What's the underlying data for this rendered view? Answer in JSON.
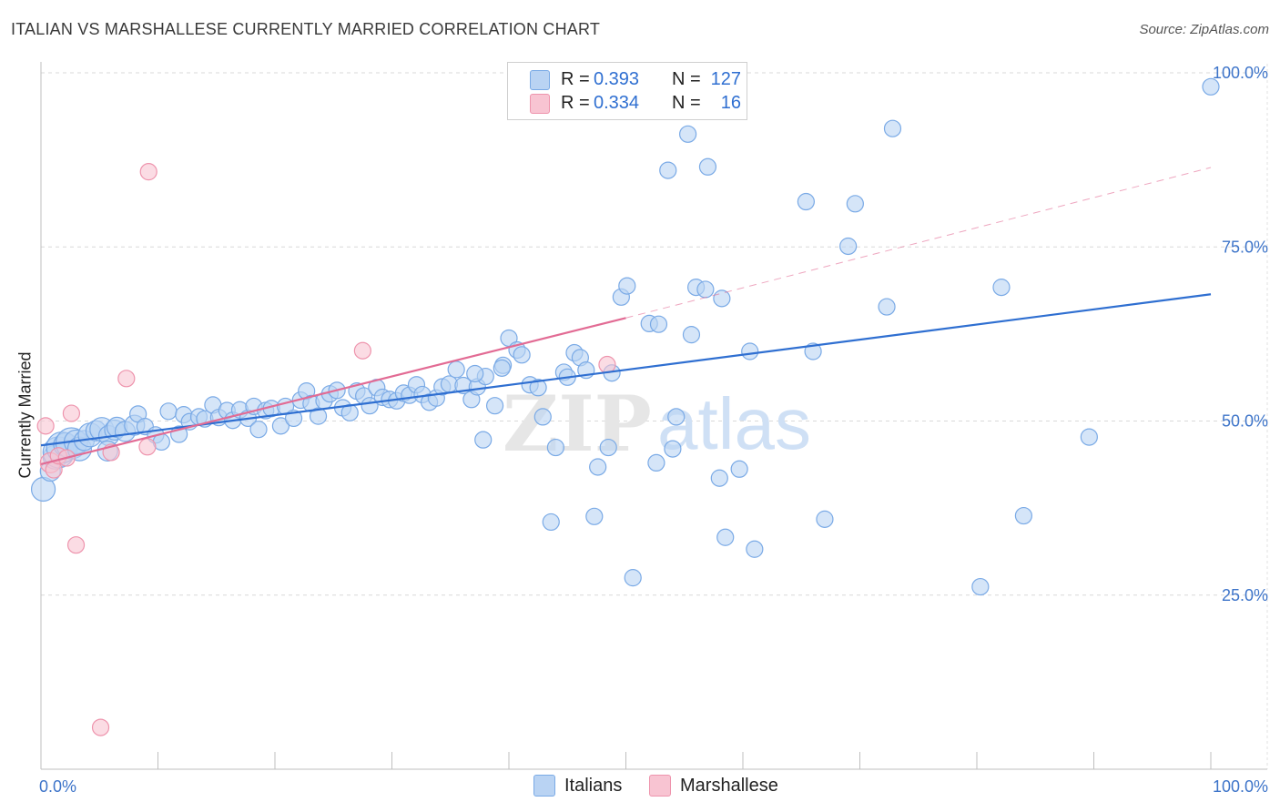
{
  "title": "ITALIAN VS MARSHALLESE CURRENTLY MARRIED CORRELATION CHART",
  "source": "Source: ZipAtlas.com",
  "legend": {
    "rows": [
      {
        "r_label": "R =",
        "r_value": "0.393",
        "n_label": "N =",
        "n_value": "127",
        "color": "#a9c8f0"
      },
      {
        "r_label": "R =",
        "r_value": "0.334",
        "n_label": "N =",
        "n_value": "16",
        "color": "#f7b9cb"
      }
    ]
  },
  "bottom_legend": {
    "italians": "Italians",
    "marshallese": "Marshallese"
  },
  "chart_data": {
    "type": "scatter",
    "title": "ITALIAN VS MARSHALLESE CURRENTLY MARRIED CORRELATION CHART",
    "xlabel": "",
    "ylabel": "Currently Married",
    "xlim": [
      0,
      100
    ],
    "ylim": [
      0,
      100
    ],
    "x_tick_labels": [
      "0.0%",
      "100.0%"
    ],
    "y_tick_labels": [
      "25.0%",
      "50.0%",
      "75.0%",
      "100.0%"
    ],
    "y_ticks": [
      25,
      50,
      75,
      100
    ],
    "watermark": "ZIPatlas",
    "series": [
      {
        "name": "Italians",
        "color": "#7aaae6",
        "fill": "#b9d3f3",
        "line_color": "#2f6fd1",
        "trend": {
          "x": [
            0,
            100
          ],
          "y": [
            46.5,
            68.2
          ]
        },
        "points": [
          [
            0.2,
            40.2,
            3
          ],
          [
            0.8,
            42.8,
            2
          ],
          [
            1.2,
            44.8,
            3
          ],
          [
            1.5,
            45.5,
            4
          ],
          [
            1.8,
            46.2,
            4
          ],
          [
            2.1,
            46.6,
            3
          ],
          [
            2.6,
            46.8,
            4
          ],
          [
            3.0,
            47.0,
            3
          ],
          [
            3.3,
            46.0,
            3
          ],
          [
            3.7,
            47.2,
            2
          ],
          [
            4.2,
            48.0,
            3
          ],
          [
            4.7,
            48.6,
            2
          ],
          [
            5.2,
            48.8,
            3
          ],
          [
            5.8,
            47.9,
            2
          ],
          [
            6.3,
            48.7,
            2
          ],
          [
            5.7,
            45.7,
            2
          ],
          [
            6.5,
            49.1,
            2
          ],
          [
            7.2,
            48.5,
            2
          ],
          [
            8.0,
            49.4,
            2
          ],
          [
            8.3,
            51.0,
            1
          ],
          [
            8.9,
            49.2,
            1
          ],
          [
            9.8,
            48.0,
            1
          ],
          [
            10.3,
            47.0,
            1
          ],
          [
            10.9,
            51.4,
            1
          ],
          [
            11.8,
            48.1,
            1
          ],
          [
            12.2,
            50.9,
            1
          ],
          [
            12.7,
            49.9,
            1
          ],
          [
            13.5,
            50.6,
            1
          ],
          [
            14.0,
            50.3,
            1
          ],
          [
            14.7,
            52.3,
            1
          ],
          [
            15.2,
            50.5,
            1
          ],
          [
            15.9,
            51.5,
            1
          ],
          [
            16.4,
            50.1,
            1
          ],
          [
            17.0,
            51.6,
            1
          ],
          [
            17.7,
            50.4,
            1
          ],
          [
            18.2,
            52.1,
            1
          ],
          [
            18.6,
            48.8,
            1
          ],
          [
            19.2,
            51.5,
            1
          ],
          [
            19.7,
            51.8,
            1
          ],
          [
            20.5,
            49.3,
            1
          ],
          [
            20.9,
            52.1,
            1
          ],
          [
            21.6,
            50.4,
            1
          ],
          [
            22.2,
            53.0,
            1
          ],
          [
            22.7,
            54.3,
            1
          ],
          [
            23.1,
            52.5,
            1
          ],
          [
            23.7,
            50.7,
            1
          ],
          [
            24.2,
            52.9,
            1
          ],
          [
            24.7,
            53.9,
            1
          ],
          [
            25.3,
            54.4,
            1
          ],
          [
            25.8,
            51.9,
            1
          ],
          [
            26.4,
            51.2,
            1
          ],
          [
            27.0,
            54.3,
            1
          ],
          [
            27.6,
            53.6,
            1
          ],
          [
            28.1,
            52.2,
            1
          ],
          [
            28.7,
            54.8,
            1
          ],
          [
            29.2,
            53.4,
            1
          ],
          [
            29.8,
            53.1,
            1
          ],
          [
            30.4,
            52.9,
            1
          ],
          [
            31.0,
            54.0,
            1
          ],
          [
            31.5,
            53.7,
            1
          ],
          [
            32.1,
            55.2,
            1
          ],
          [
            32.6,
            53.8,
            1
          ],
          [
            33.2,
            52.7,
            1
          ],
          [
            33.8,
            53.3,
            1
          ],
          [
            34.3,
            54.9,
            1
          ],
          [
            34.9,
            55.3,
            1
          ],
          [
            35.5,
            57.4,
            1
          ],
          [
            36.1,
            55.1,
            1
          ],
          [
            36.8,
            53.1,
            1
          ],
          [
            37.3,
            54.9,
            1
          ],
          [
            38.0,
            56.4,
            1
          ],
          [
            37.8,
            47.3,
            1
          ],
          [
            38.8,
            52.2,
            1
          ],
          [
            37.1,
            56.8,
            1
          ],
          [
            39.5,
            58.0,
            1
          ],
          [
            40.0,
            61.9,
            1
          ],
          [
            39.4,
            57.6,
            1
          ],
          [
            40.7,
            60.2,
            1
          ],
          [
            41.1,
            59.5,
            1
          ],
          [
            41.8,
            55.2,
            1
          ],
          [
            42.5,
            54.8,
            1
          ],
          [
            42.9,
            50.6,
            1
          ],
          [
            43.6,
            35.5,
            1
          ],
          [
            44.0,
            46.2,
            1
          ],
          [
            44.7,
            57.0,
            1
          ],
          [
            45.0,
            56.3,
            1
          ],
          [
            45.6,
            59.8,
            1
          ],
          [
            46.1,
            59.1,
            1
          ],
          [
            46.6,
            57.3,
            1
          ],
          [
            47.3,
            36.3,
            1
          ],
          [
            47.6,
            43.4,
            1
          ],
          [
            48.5,
            46.2,
            1
          ],
          [
            48.8,
            56.9,
            1
          ],
          [
            49.6,
            67.8,
            1
          ],
          [
            50.1,
            69.4,
            1
          ],
          [
            50.6,
            27.5,
            1
          ],
          [
            52.0,
            64.0,
            1
          ],
          [
            52.8,
            63.9,
            1
          ],
          [
            52.6,
            44.0,
            1
          ],
          [
            54.0,
            46.0,
            1
          ],
          [
            53.6,
            86.0,
            1
          ],
          [
            54.3,
            50.6,
            1
          ],
          [
            55.3,
            91.2,
            1
          ],
          [
            55.6,
            62.4,
            1
          ],
          [
            56.0,
            69.2,
            1
          ],
          [
            56.8,
            68.9,
            1
          ],
          [
            57.0,
            86.5,
            1
          ],
          [
            58.0,
            41.8,
            1
          ],
          [
            58.2,
            67.6,
            1
          ],
          [
            58.5,
            33.3,
            1
          ],
          [
            59.7,
            43.1,
            1
          ],
          [
            60.6,
            60.0,
            1
          ],
          [
            61.0,
            31.6,
            1
          ],
          [
            65.4,
            81.5,
            1
          ],
          [
            66.0,
            60.0,
            1
          ],
          [
            67.0,
            35.9,
            1
          ],
          [
            69.0,
            75.1,
            1
          ],
          [
            69.6,
            81.2,
            1
          ],
          [
            72.3,
            66.4,
            1
          ],
          [
            72.8,
            92.0,
            1
          ],
          [
            80.3,
            26.2,
            1
          ],
          [
            82.1,
            69.2,
            1
          ],
          [
            84.0,
            36.4,
            1
          ],
          [
            89.6,
            47.7,
            1
          ],
          [
            100.0,
            98.0,
            1
          ]
        ]
      },
      {
        "name": "Marshallese",
        "color": "#ee94ad",
        "fill": "#f8c4d2",
        "line_color": "#e26b94",
        "trend": {
          "x": [
            0,
            50
          ],
          "y": [
            43.8,
            64.8
          ]
        },
        "trend_dashed": {
          "x": [
            50,
            100
          ],
          "y": [
            64.8,
            86.4
          ]
        },
        "points": [
          [
            0.4,
            49.3,
            1
          ],
          [
            0.8,
            44.0,
            2
          ],
          [
            1.1,
            43.0,
            1
          ],
          [
            1.5,
            45.0,
            1
          ],
          [
            2.2,
            44.7,
            1
          ],
          [
            2.6,
            51.1,
            1
          ],
          [
            3.0,
            32.2,
            1
          ],
          [
            5.1,
            6.0,
            1
          ],
          [
            6.0,
            45.5,
            1
          ],
          [
            7.3,
            56.1,
            1
          ],
          [
            9.1,
            46.3,
            1
          ],
          [
            9.2,
            85.8,
            1
          ],
          [
            27.5,
            60.1,
            1
          ],
          [
            48.4,
            58.1,
            1
          ]
        ]
      }
    ]
  }
}
